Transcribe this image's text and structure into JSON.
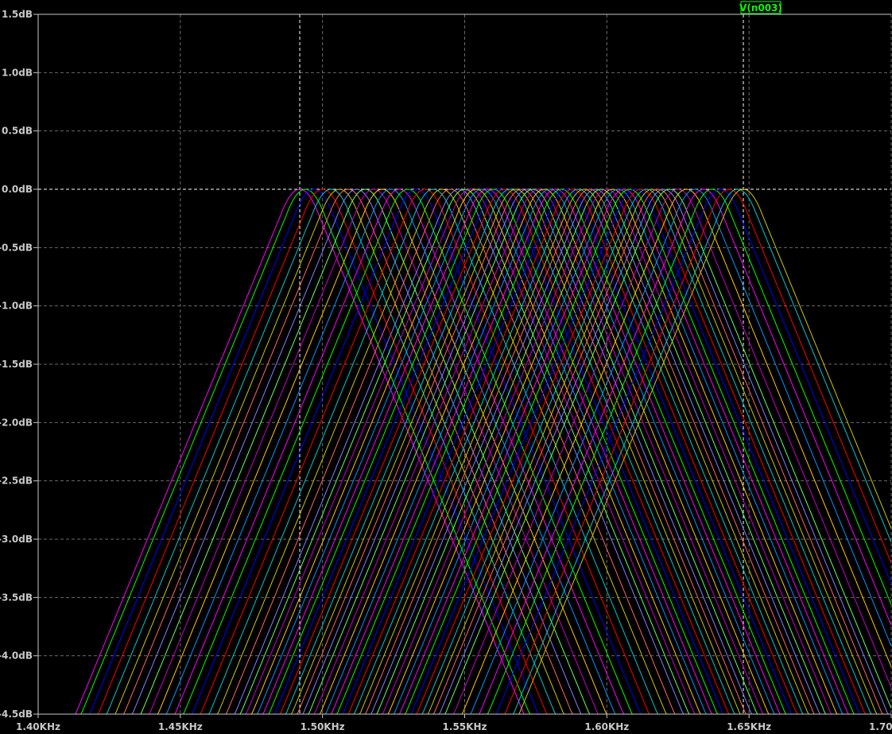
{
  "chart_data": {
    "type": "line",
    "trace_label": "V(n003)",
    "xlabel": "",
    "ylabel": "",
    "xlim": [
      1400,
      1700
    ],
    "ylim": [
      -4.5,
      1.5
    ],
    "x_ticks": [
      {
        "value": 1400,
        "label": "1.40KHz"
      },
      {
        "value": 1450,
        "label": "1.45KHz"
      },
      {
        "value": 1500,
        "label": "1.50KHz"
      },
      {
        "value": 1550,
        "label": "1.55KHz"
      },
      {
        "value": 1600,
        "label": "1.60KHz"
      },
      {
        "value": 1650,
        "label": "1.65KHz"
      },
      {
        "value": 1700,
        "label": "1.70KHz"
      }
    ],
    "y_ticks": [
      {
        "value": 1.5,
        "label": "1.5dB"
      },
      {
        "value": 1.0,
        "label": "1.0dB"
      },
      {
        "value": 0.5,
        "label": "0.5dB"
      },
      {
        "value": 0.0,
        "label": "0.0dB"
      },
      {
        "value": -0.5,
        "label": "-0.5dB"
      },
      {
        "value": -1.0,
        "label": "-1.0dB"
      },
      {
        "value": -1.5,
        "label": "-1.5dB"
      },
      {
        "value": -2.0,
        "label": "-2.0dB"
      },
      {
        "value": -2.5,
        "label": "-2.5dB"
      },
      {
        "value": -3.0,
        "label": "-3.0dB"
      },
      {
        "value": -3.5,
        "label": "-3.5dB"
      },
      {
        "value": -4.0,
        "label": "-4.0dB"
      },
      {
        "value": -4.5,
        "label": "-4.5dB"
      }
    ],
    "cursors_x": [
      1492,
      1648
    ],
    "grid": true,
    "curve_shape": {
      "flank_db_per_hz": -0.05933,
      "peak_db": 0.0
    },
    "series_peaks_hz": [
      1492,
      1494,
      1497,
      1500,
      1503,
      1506,
      1509,
      1512,
      1515,
      1518,
      1521,
      1524,
      1527,
      1530,
      1533,
      1536,
      1539,
      1542,
      1545,
      1548,
      1550,
      1552,
      1554,
      1556,
      1558,
      1560,
      1562,
      1564,
      1566,
      1568,
      1570,
      1572,
      1574,
      1576,
      1578,
      1580,
      1582,
      1584,
      1586,
      1588,
      1590,
      1592,
      1594,
      1596,
      1598,
      1600,
      1602,
      1604,
      1606,
      1608,
      1610,
      1612,
      1614,
      1616,
      1618,
      1620,
      1622,
      1625,
      1628,
      1631,
      1634,
      1637,
      1640,
      1643,
      1646,
      1648
    ],
    "series_colors": [
      "#ff00ff",
      "#00ff00",
      "#0000ff",
      "#ff0000",
      "#00c8c8",
      "#c8c800",
      "#ff6464",
      "#8080ff",
      "#64ff64",
      "#c800c8",
      "#ffc800",
      "#0096ff"
    ]
  }
}
